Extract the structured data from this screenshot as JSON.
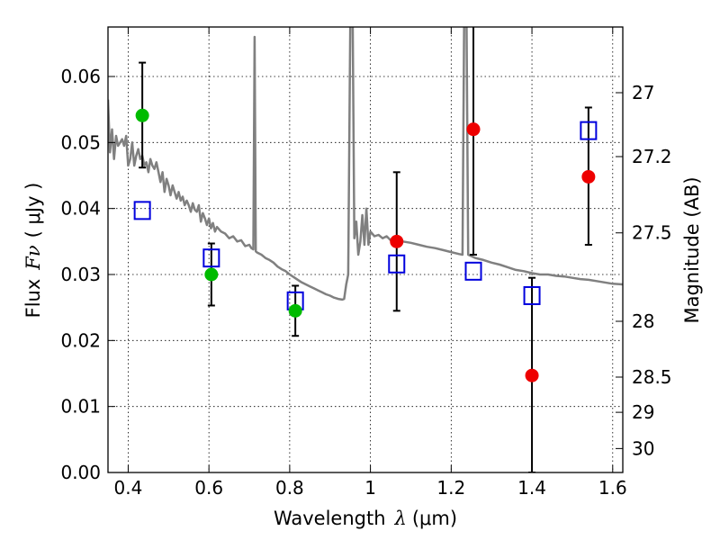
{
  "chart_data": {
    "type": "scatter",
    "xlabel": {
      "main": "Wavelength",
      "symbol": "λ",
      "unit": "(μm)"
    },
    "ylabel": {
      "main": "Flux",
      "symbol": "Fν",
      "unit": "( μJy )"
    },
    "y2label": "Magnitude (AB)",
    "xlim": [
      0.35,
      1.625
    ],
    "ylim": [
      0.0,
      0.0675
    ],
    "x_ticks": [
      "0.4",
      "0.6",
      "0.8",
      "1",
      "1.2",
      "1.4",
      "1.6"
    ],
    "x_tick_values": [
      0.4,
      0.6,
      0.8,
      1.0,
      1.2,
      1.4,
      1.6
    ],
    "y_ticks": [
      "0.00",
      "0.01",
      "0.02",
      "0.03",
      "0.04",
      "0.05",
      "0.06"
    ],
    "y_tick_values": [
      0.0,
      0.01,
      0.02,
      0.03,
      0.04,
      0.05,
      0.06
    ],
    "y2_ticks": [
      "27",
      "27.2",
      "27.5",
      "28",
      "28.5",
      "29",
      "30"
    ],
    "y2_tick_values": [
      27,
      27.2,
      27.5,
      28,
      28.5,
      29,
      30
    ],
    "grid": true,
    "colors": {
      "green": "#00bb00",
      "red": "#ee0000",
      "blue": "#0000dd",
      "model": "#808080"
    },
    "series": [
      {
        "marker": "circle-green",
        "points": [
          {
            "x": 0.435,
            "y": 0.0541,
            "err_low": 0.0079,
            "err_high": 0.008
          },
          {
            "x": 0.606,
            "y": 0.03,
            "err_low": 0.0047,
            "err_high": 0.0047
          },
          {
            "x": 0.814,
            "y": 0.0245,
            "err_low": 0.0038,
            "err_high": 0.0038
          }
        ]
      },
      {
        "marker": "circle-red",
        "points": [
          {
            "x": 1.065,
            "y": 0.035,
            "err_low": 0.0105,
            "err_high": 0.0105
          },
          {
            "x": 1.255,
            "y": 0.052,
            "err_low": 0.019,
            "err_high": 0.02
          },
          {
            "x": 1.4,
            "y": 0.0147,
            "err_low": 0.0147,
            "err_high": 0.0148
          },
          {
            "x": 1.54,
            "y": 0.0448,
            "err_low": 0.0103,
            "err_high": 0.0105
          }
        ]
      },
      {
        "marker": "square-blue",
        "points": [
          {
            "x": 0.435,
            "y": 0.0397
          },
          {
            "x": 0.606,
            "y": 0.0325
          },
          {
            "x": 0.814,
            "y": 0.026
          },
          {
            "x": 1.065,
            "y": 0.0316
          },
          {
            "x": 1.255,
            "y": 0.0305
          },
          {
            "x": 1.4,
            "y": 0.0268
          },
          {
            "x": 1.54,
            "y": 0.0518
          }
        ]
      },
      {
        "marker": "line-gray",
        "points": [
          [
            0.35,
            0.0565
          ],
          [
            0.355,
            0.0485
          ],
          [
            0.36,
            0.052
          ],
          [
            0.365,
            0.0475
          ],
          [
            0.37,
            0.051
          ],
          [
            0.375,
            0.0495
          ],
          [
            0.38,
            0.05
          ],
          [
            0.385,
            0.0505
          ],
          [
            0.39,
            0.0495
          ],
          [
            0.395,
            0.051
          ],
          [
            0.4,
            0.0465
          ],
          [
            0.405,
            0.0475
          ],
          [
            0.41,
            0.05
          ],
          [
            0.415,
            0.0465
          ],
          [
            0.42,
            0.048
          ],
          [
            0.425,
            0.049
          ],
          [
            0.43,
            0.0475
          ],
          [
            0.435,
            0.048
          ],
          [
            0.44,
            0.0465
          ],
          [
            0.445,
            0.047
          ],
          [
            0.45,
            0.0455
          ],
          [
            0.455,
            0.0475
          ],
          [
            0.46,
            0.0465
          ],
          [
            0.465,
            0.046
          ],
          [
            0.47,
            0.047
          ],
          [
            0.475,
            0.0455
          ],
          [
            0.48,
            0.044
          ],
          [
            0.485,
            0.0455
          ],
          [
            0.49,
            0.0425
          ],
          [
            0.495,
            0.0445
          ],
          [
            0.5,
            0.0435
          ],
          [
            0.505,
            0.042
          ],
          [
            0.51,
            0.0435
          ],
          [
            0.515,
            0.0425
          ],
          [
            0.52,
            0.0415
          ],
          [
            0.525,
            0.0425
          ],
          [
            0.53,
            0.0412
          ],
          [
            0.535,
            0.0418
          ],
          [
            0.54,
            0.0405
          ],
          [
            0.545,
            0.0412
          ],
          [
            0.55,
            0.0405
          ],
          [
            0.555,
            0.0395
          ],
          [
            0.56,
            0.0408
          ],
          [
            0.565,
            0.0398
          ],
          [
            0.57,
            0.0395
          ],
          [
            0.575,
            0.0405
          ],
          [
            0.58,
            0.038
          ],
          [
            0.585,
            0.0393
          ],
          [
            0.59,
            0.0385
          ],
          [
            0.595,
            0.0375
          ],
          [
            0.6,
            0.0385
          ],
          [
            0.605,
            0.037
          ],
          [
            0.61,
            0.0378
          ],
          [
            0.615,
            0.0365
          ],
          [
            0.62,
            0.0372
          ],
          [
            0.63,
            0.0365
          ],
          [
            0.64,
            0.0362
          ],
          [
            0.65,
            0.0355
          ],
          [
            0.66,
            0.0358
          ],
          [
            0.67,
            0.035
          ],
          [
            0.68,
            0.0352
          ],
          [
            0.69,
            0.0343
          ],
          [
            0.7,
            0.0345
          ],
          [
            0.705,
            0.034
          ],
          [
            0.71,
            0.0338
          ],
          [
            0.713,
            0.066
          ],
          [
            0.716,
            0.0335
          ],
          [
            0.72,
            0.0333
          ],
          [
            0.73,
            0.033
          ],
          [
            0.74,
            0.0325
          ],
          [
            0.75,
            0.0322
          ],
          [
            0.76,
            0.0318
          ],
          [
            0.77,
            0.0312
          ],
          [
            0.78,
            0.0308
          ],
          [
            0.79,
            0.0305
          ],
          [
            0.8,
            0.03
          ],
          [
            0.81,
            0.0296
          ],
          [
            0.82,
            0.0292
          ],
          [
            0.83,
            0.0288
          ],
          [
            0.84,
            0.0285
          ],
          [
            0.85,
            0.0282
          ],
          [
            0.86,
            0.0279
          ],
          [
            0.87,
            0.0276
          ],
          [
            0.88,
            0.0273
          ],
          [
            0.89,
            0.027
          ],
          [
            0.9,
            0.0268
          ],
          [
            0.91,
            0.0265
          ],
          [
            0.92,
            0.0263
          ],
          [
            0.93,
            0.0262
          ],
          [
            0.935,
            0.0263
          ],
          [
            0.94,
            0.0285
          ],
          [
            0.945,
            0.03
          ],
          [
            0.95,
            0.068
          ],
          [
            0.956,
            0.068
          ],
          [
            0.96,
            0.0355
          ],
          [
            0.965,
            0.038
          ],
          [
            0.97,
            0.033
          ],
          [
            0.975,
            0.035
          ],
          [
            0.98,
            0.039
          ],
          [
            0.985,
            0.0345
          ],
          [
            0.99,
            0.04
          ],
          [
            0.995,
            0.0345
          ],
          [
            1.0,
            0.0365
          ],
          [
            1.01,
            0.0358
          ],
          [
            1.02,
            0.036
          ],
          [
            1.03,
            0.0355
          ],
          [
            1.04,
            0.0358
          ],
          [
            1.05,
            0.0352
          ],
          [
            1.06,
            0.0355
          ],
          [
            1.08,
            0.035
          ],
          [
            1.1,
            0.0348
          ],
          [
            1.12,
            0.0345
          ],
          [
            1.14,
            0.0342
          ],
          [
            1.16,
            0.034
          ],
          [
            1.18,
            0.0337
          ],
          [
            1.2,
            0.0334
          ],
          [
            1.22,
            0.0331
          ],
          [
            1.228,
            0.033
          ],
          [
            1.232,
            0.068
          ],
          [
            1.238,
            0.068
          ],
          [
            1.242,
            0.033
          ],
          [
            1.26,
            0.0325
          ],
          [
            1.28,
            0.0322
          ],
          [
            1.3,
            0.0318
          ],
          [
            1.32,
            0.0315
          ],
          [
            1.34,
            0.0311
          ],
          [
            1.36,
            0.0307
          ],
          [
            1.38,
            0.0305
          ],
          [
            1.4,
            0.0302
          ],
          [
            1.42,
            0.03
          ],
          [
            1.44,
            0.03
          ],
          [
            1.46,
            0.0298
          ],
          [
            1.48,
            0.0297
          ],
          [
            1.5,
            0.0295
          ],
          [
            1.52,
            0.0293
          ],
          [
            1.54,
            0.0292
          ],
          [
            1.56,
            0.029
          ],
          [
            1.58,
            0.0288
          ],
          [
            1.6,
            0.0286
          ],
          [
            1.625,
            0.0285
          ]
        ]
      }
    ]
  }
}
